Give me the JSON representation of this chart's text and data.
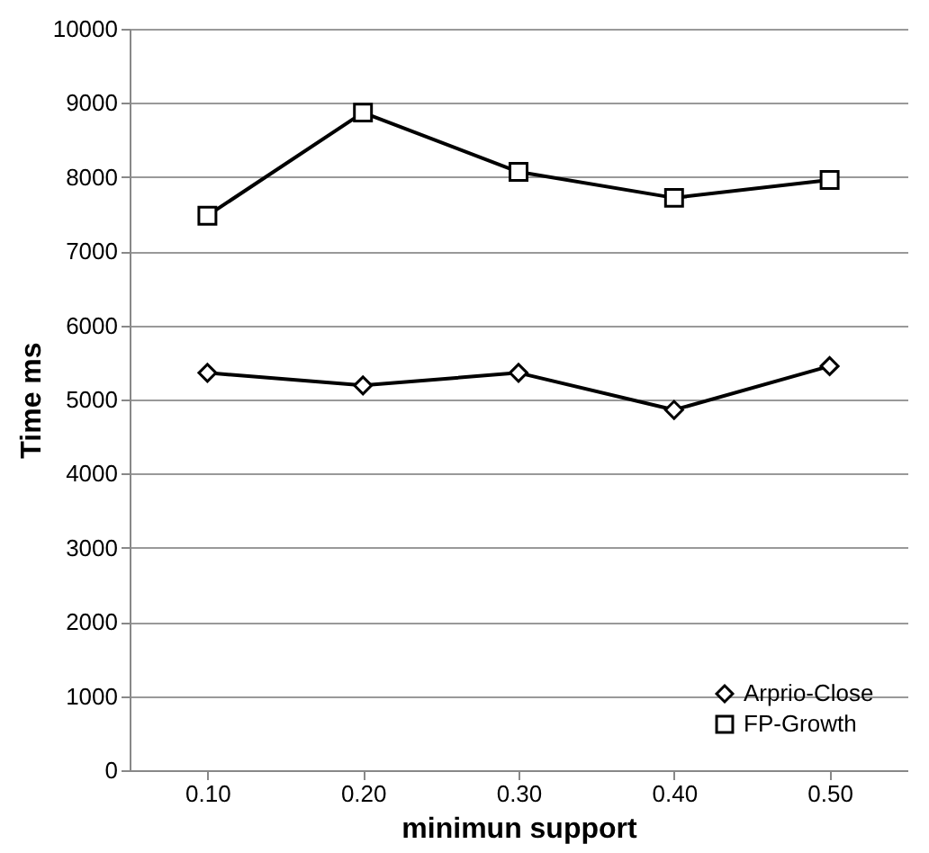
{
  "chart_data": {
    "type": "line",
    "xlabel": "minimun support",
    "ylabel": "Time ms",
    "categories": [
      "0.10",
      "0.20",
      "0.30",
      "0.40",
      "0.50"
    ],
    "series": [
      {
        "name": "Arprio-Close",
        "color": "#000000",
        "marker": "diamond",
        "values": [
          5360,
          5190,
          5360,
          4860,
          5450
        ]
      },
      {
        "name": "FP-Growth",
        "color": "#000000",
        "marker": "square",
        "values": [
          7480,
          8870,
          8070,
          7720,
          7960
        ]
      }
    ],
    "ylim": [
      0,
      10000
    ],
    "yticks": [
      0,
      1000,
      2000,
      3000,
      4000,
      5000,
      6000,
      7000,
      8000,
      9000,
      10000
    ],
    "grid": "y",
    "legend": "bottom right",
    "line_style": "solid"
  }
}
